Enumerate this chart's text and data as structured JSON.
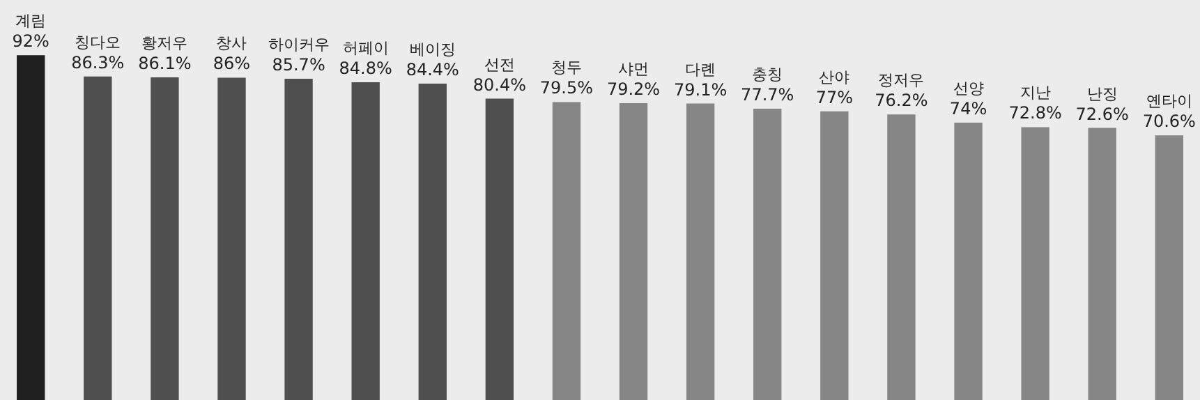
{
  "chart_data": {
    "type": "bar",
    "categories": [
      "계림",
      "칭다오",
      "황저우",
      "창사",
      "하이커우",
      "허페이",
      "베이징",
      "선전",
      "청두",
      "샤먼",
      "다롄",
      "충칭",
      "산야",
      "정저우",
      "선양",
      "지난",
      "난징",
      "옌타이"
    ],
    "values": [
      92,
      86.3,
      86.1,
      86,
      85.7,
      84.8,
      84.4,
      80.4,
      79.5,
      79.2,
      79.1,
      77.7,
      77,
      76.2,
      74,
      72.8,
      72.6,
      70.6
    ],
    "colors": [
      "#1f1f1f",
      "#4f4f4f",
      "#4f4f4f",
      "#4f4f4f",
      "#4f4f4f",
      "#4f4f4f",
      "#4f4f4f",
      "#4f4f4f",
      "#868686",
      "#868686",
      "#868686",
      "#868686",
      "#868686",
      "#868686",
      "#868686",
      "#868686",
      "#868686",
      "#868686"
    ],
    "value_labels": [
      "92%",
      "86.3%",
      "86.1%",
      "86%",
      "85.7%",
      "84.8%",
      "84.4%",
      "80.4%",
      "79.5%",
      "79.2%",
      "79.1%",
      "77.7%",
      "77%",
      "76.2%",
      "74%",
      "72.8%",
      "72.6%",
      "70.6%"
    ]
  }
}
